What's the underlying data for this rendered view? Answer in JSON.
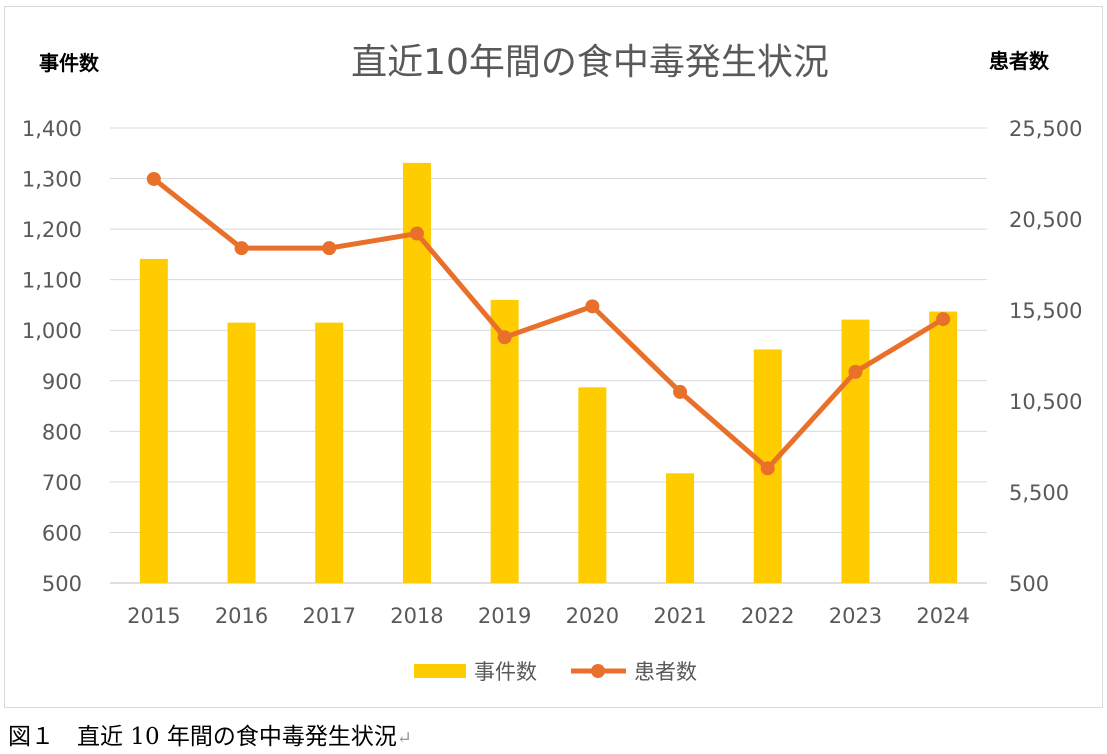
{
  "chart_data": {
    "type": "bar",
    "title": "直近10年間の食中毒発生状況",
    "categories": [
      "2015",
      "2016",
      "2017",
      "2018",
      "2019",
      "2020",
      "2021",
      "2022",
      "2023",
      "2024"
    ],
    "series": [
      {
        "name": "事件数",
        "type": "bar",
        "axis": "left",
        "color": "#FFCC00",
        "values": [
          1141,
          1015,
          1015,
          1331,
          1060,
          887,
          717,
          962,
          1021,
          1037
        ]
      },
      {
        "name": "患者数",
        "type": "line",
        "axis": "right",
        "color": "#E8702A",
        "values": [
          22700,
          18900,
          18900,
          19700,
          14000,
          15700,
          11000,
          6800,
          12100,
          15000
        ]
      }
    ],
    "y_left": {
      "label": "事件数",
      "ylim": [
        500,
        1400
      ],
      "ticks": [
        "500",
        "600",
        "700",
        "800",
        "900",
        "1,000",
        "1,100",
        "1,200",
        "1,300",
        "1,400"
      ]
    },
    "y_right": {
      "label": "患者数",
      "ylim": [
        500,
        25500
      ],
      "ticks": [
        "500",
        "5,500",
        "10,500",
        "15,500",
        "20,500",
        "25,500"
      ]
    },
    "grid": true,
    "legend_position": "bottom"
  },
  "caption": {
    "text": "図１　直近 10 年間の食中毒発生状況",
    "return_mark": "↵"
  }
}
